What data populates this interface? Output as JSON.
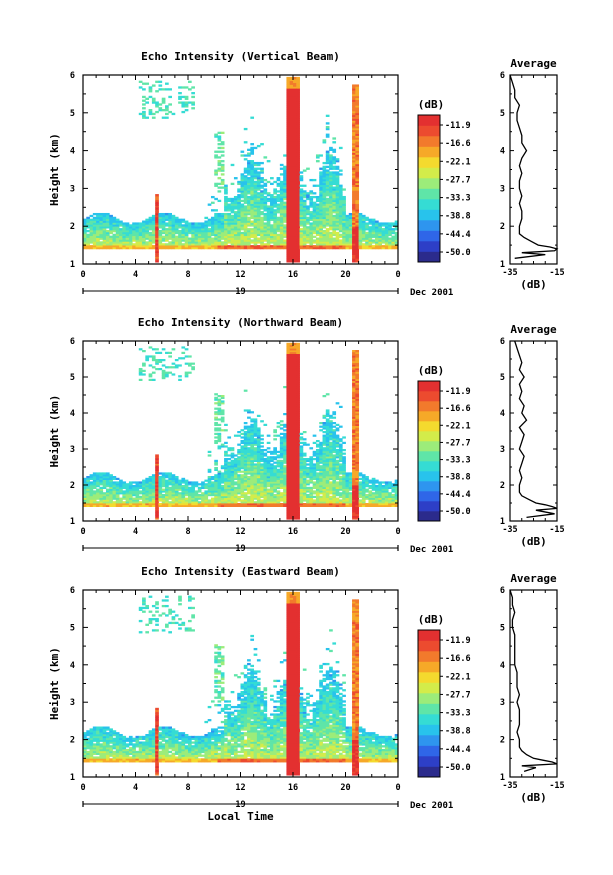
{
  "chart_data": [
    {
      "type": "heatmap",
      "title": "Echo Intensity (Vertical Beam)",
      "ylabel": "Height (km)",
      "xlabel": "",
      "x_ticks": [
        "0",
        "4",
        "8",
        "12",
        "16",
        "20",
        "0"
      ],
      "y_ticks": [
        "1",
        "2",
        "3",
        "4",
        "5",
        "6"
      ],
      "xlim": [
        0,
        24
      ],
      "ylim": [
        1,
        6
      ],
      "date_label": "19",
      "date_suffix": "Dec 2001",
      "colorbar": {
        "label": "(dB)",
        "ticks": [
          "-11.9",
          "-16.6",
          "-22.1",
          "-27.7",
          "-33.3",
          "-38.8",
          "-44.4",
          "-50.0"
        ],
        "range": [
          -50.0,
          -11.9
        ],
        "colors": [
          "#2b2b8c",
          "#2d3fc7",
          "#2f66e8",
          "#2e95ef",
          "#28c3ec",
          "#35dcd4",
          "#5fe5a8",
          "#9cec7a",
          "#d3ec4a",
          "#f4da2e",
          "#f6a928",
          "#f27a2c",
          "#ec4b2f",
          "#e33030"
        ]
      },
      "profile": {
        "title": "Average",
        "xlabel": "(dB)",
        "x_ticks": [
          "-35",
          "-15"
        ],
        "xlim": [
          -35,
          -15
        ],
        "y_ticks": [
          "1",
          "2",
          "3",
          "4",
          "5",
          "6"
        ],
        "heights": [
          1.15,
          1.25,
          1.3,
          1.35,
          1.4,
          1.45,
          1.5,
          1.6,
          1.7,
          1.8,
          1.9,
          2.0,
          2.2,
          2.4,
          2.6,
          2.8,
          3.0,
          3.2,
          3.4,
          3.6,
          3.8,
          4.0,
          4.2,
          4.4,
          4.6,
          4.8,
          5.0,
          5.2,
          5.4,
          5.6,
          5.8,
          6.0
        ],
        "values": [
          -33,
          -20,
          -30,
          -16,
          -15,
          -18,
          -23,
          -26,
          -29,
          -31,
          -31,
          -31,
          -30,
          -30,
          -31,
          -30,
          -31,
          -31,
          -30,
          -31,
          -30,
          -28,
          -30,
          -30,
          -31,
          -32,
          -32,
          -31,
          -33,
          -33,
          -34,
          -35
        ]
      }
    },
    {
      "type": "heatmap",
      "title": "Echo Intensity (Northward Beam)",
      "ylabel": "Height (km)",
      "xlabel": "",
      "x_ticks": [
        "0",
        "4",
        "8",
        "12",
        "16",
        "20",
        "0"
      ],
      "y_ticks": [
        "1",
        "2",
        "3",
        "4",
        "5",
        "6"
      ],
      "xlim": [
        0,
        24
      ],
      "ylim": [
        1,
        6
      ],
      "date_label": "19",
      "date_suffix": "Dec 2001",
      "colorbar": {
        "label": "(dB)",
        "ticks": [
          "-11.9",
          "-16.6",
          "-22.1",
          "-27.7",
          "-33.3",
          "-38.8",
          "-44.4",
          "-50.0"
        ],
        "range": [
          -50.0,
          -11.9
        ],
        "colors": [
          "#2b2b8c",
          "#2d3fc7",
          "#2f66e8",
          "#2e95ef",
          "#28c3ec",
          "#35dcd4",
          "#5fe5a8",
          "#9cec7a",
          "#d3ec4a",
          "#f4da2e",
          "#f6a928",
          "#f27a2c",
          "#ec4b2f",
          "#e33030"
        ]
      },
      "profile": {
        "title": "Average",
        "xlabel": "(dB)",
        "x_ticks": [
          "-35",
          "-15"
        ],
        "xlim": [
          -35,
          -15
        ],
        "y_ticks": [
          "1",
          "2",
          "3",
          "4",
          "5",
          "6"
        ],
        "heights": [
          1.1,
          1.2,
          1.3,
          1.35,
          1.4,
          1.45,
          1.5,
          1.6,
          1.7,
          1.8,
          1.9,
          2.0,
          2.2,
          2.4,
          2.6,
          2.8,
          3.0,
          3.2,
          3.4,
          3.6,
          3.8,
          4.0,
          4.2,
          4.4,
          4.6,
          4.8,
          5.0,
          5.2,
          5.4,
          5.6,
          5.8,
          6.0
        ],
        "values": [
          -28,
          -16,
          -24,
          -15,
          -17,
          -20,
          -24,
          -27,
          -30,
          -31,
          -31,
          -31,
          -30,
          -31,
          -30,
          -29,
          -31,
          -30,
          -29,
          -31,
          -28,
          -30,
          -29,
          -31,
          -30,
          -31,
          -29,
          -31,
          -30,
          -31,
          -32,
          -33
        ]
      }
    },
    {
      "type": "heatmap",
      "title": "Echo Intensity (Eastward Beam)",
      "ylabel": "Height (km)",
      "xlabel": "Local Time",
      "x_ticks": [
        "0",
        "4",
        "8",
        "12",
        "16",
        "20",
        "0"
      ],
      "y_ticks": [
        "1",
        "2",
        "3",
        "4",
        "5",
        "6"
      ],
      "xlim": [
        0,
        24
      ],
      "ylim": [
        1,
        6
      ],
      "date_label": "19",
      "date_suffix": "Dec 2001",
      "colorbar": {
        "label": "(dB)",
        "ticks": [
          "-11.9",
          "-16.6",
          "-22.1",
          "-27.7",
          "-33.3",
          "-38.8",
          "-44.4",
          "-50.0"
        ],
        "range": [
          -50.0,
          -11.9
        ],
        "colors": [
          "#2b2b8c",
          "#2d3fc7",
          "#2f66e8",
          "#2e95ef",
          "#28c3ec",
          "#35dcd4",
          "#5fe5a8",
          "#9cec7a",
          "#d3ec4a",
          "#f4da2e",
          "#f6a928",
          "#f27a2c",
          "#ec4b2f",
          "#e33030"
        ]
      },
      "profile": {
        "title": "Average",
        "xlabel": "(dB)",
        "x_ticks": [
          "-35",
          "-15"
        ],
        "xlim": [
          -35,
          -15
        ],
        "y_ticks": [
          "1",
          "2",
          "3",
          "4",
          "5",
          "6"
        ],
        "heights": [
          1.15,
          1.25,
          1.3,
          1.35,
          1.4,
          1.45,
          1.5,
          1.6,
          1.7,
          1.8,
          1.9,
          2.0,
          2.2,
          2.4,
          2.6,
          2.8,
          3.0,
          3.2,
          3.4,
          3.6,
          3.8,
          4.0,
          4.2,
          4.4,
          4.6,
          4.8,
          5.0,
          5.2,
          5.4,
          5.6,
          5.8,
          6.0
        ],
        "values": [
          -29,
          -24,
          -30,
          -15,
          -17,
          -21,
          -25,
          -28,
          -30,
          -31,
          -31,
          -31,
          -32,
          -31,
          -31,
          -31,
          -32,
          -31,
          -32,
          -32,
          -32,
          -33,
          -33,
          -33,
          -33,
          -33,
          -34,
          -34,
          -33,
          -34,
          -34,
          -35
        ]
      }
    }
  ]
}
